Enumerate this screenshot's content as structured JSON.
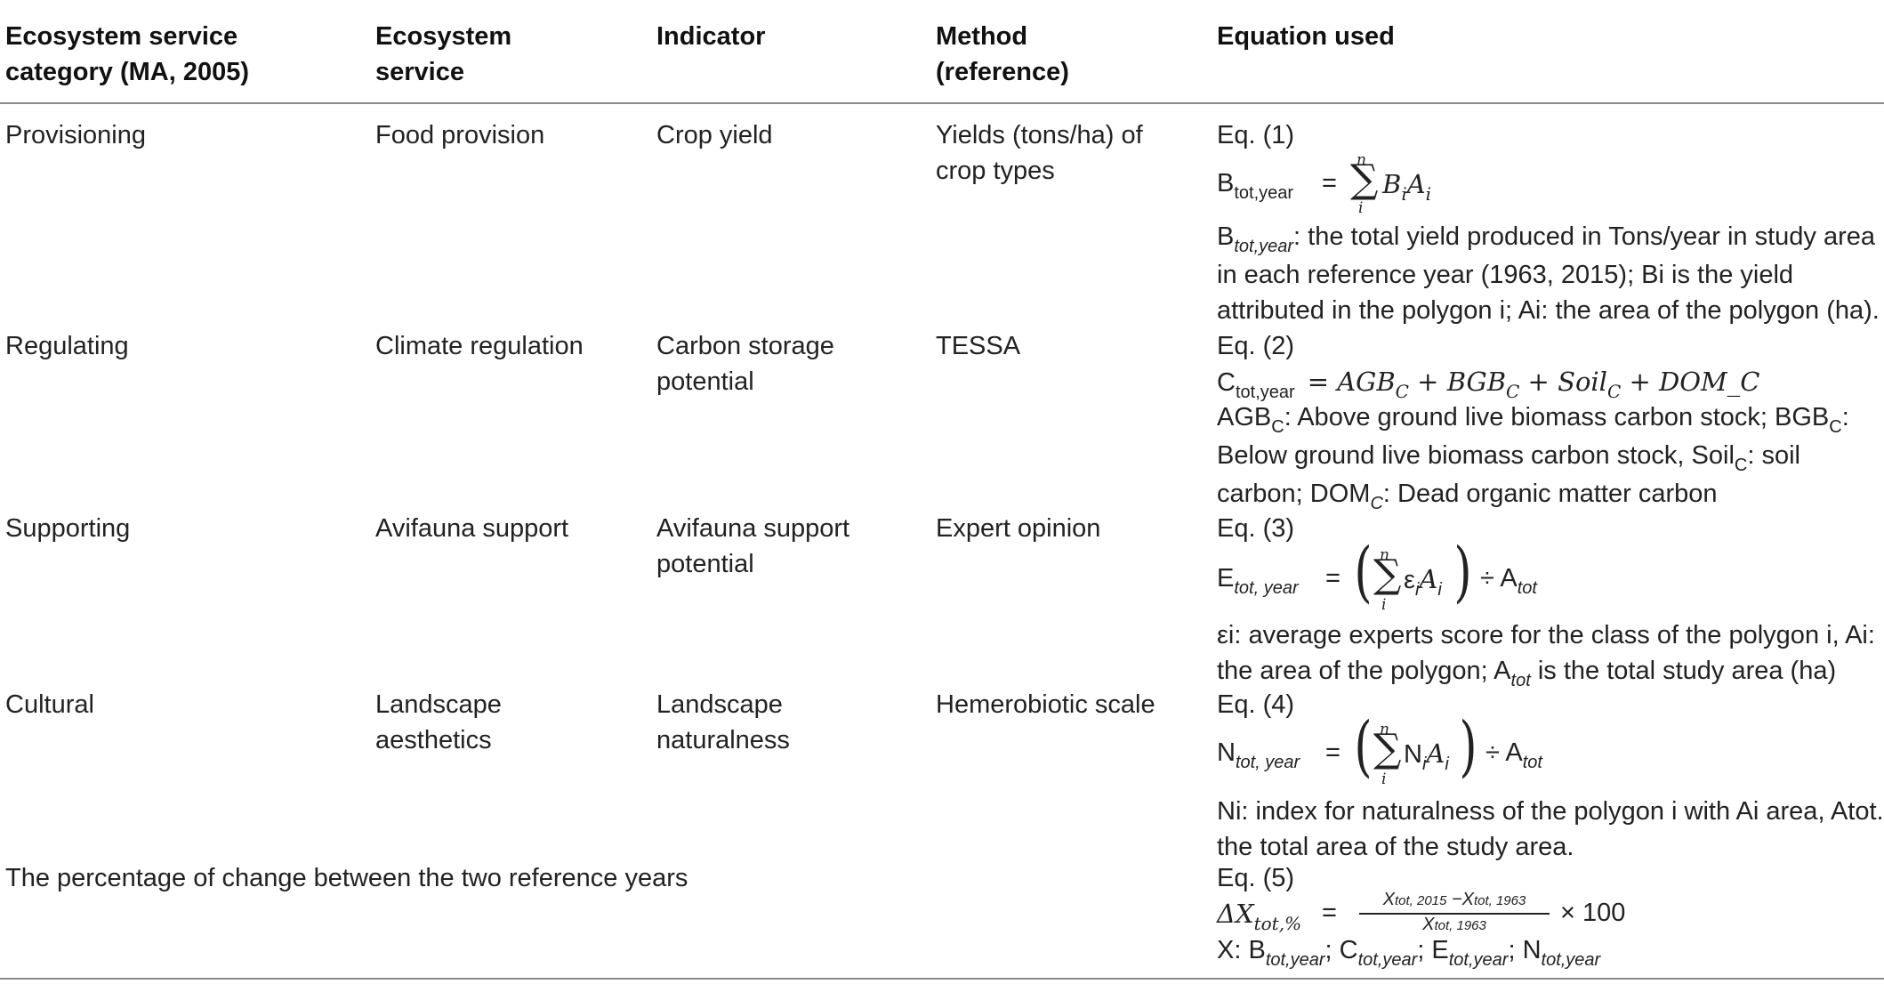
{
  "header": {
    "col1": [
      "Ecosystem service",
      "category (MA, 2005)"
    ],
    "col2": [
      "Ecosystem",
      "service"
    ],
    "col3": [
      "Indicator"
    ],
    "col4": [
      "Method",
      "(reference)"
    ],
    "col5": [
      "Equation used"
    ]
  },
  "rows": [
    {
      "category": "Provisioning",
      "service": "Food provision",
      "indicator": "Crop yield",
      "method": [
        "Yields (tons/ha) of",
        "crop types"
      ],
      "eq_label": "Eq. (1)",
      "formula": {
        "lhs_main": "B",
        "lhs_sub": "tot,year",
        "eq_sign": "=",
        "sum_top": "n",
        "sum_bottom": "i",
        "term": "B",
        "term_sub": "i",
        "term2": "A",
        "term2_sub": "i"
      },
      "desc": [
        {
          "a": "B",
          "b": "tot,year",
          "c": ": the total yield produced in Tons/year in study area"
        },
        {
          "a": "in each reference year (1963, 2015); Bi is the yield"
        },
        {
          "a": "attributed in the polygon i; Ai: the area of the polygon (ha)."
        }
      ]
    },
    {
      "category": "Regulating",
      "service": "Climate regulation",
      "indicator": [
        "Carbon storage",
        "potential"
      ],
      "method": [
        "TESSA"
      ],
      "eq_label": "Eq. (2)",
      "formula": {
        "lhs_main": "C",
        "lhs_sub": "tot,year",
        "rhs": "= AGB",
        "s1": "C",
        "p1": " + BGB",
        "s2": "C",
        "p2": " + Soil",
        "s3": "C",
        "p3": " + DOM_C"
      },
      "desc": [
        {
          "a": "AGB",
          "b": "C",
          "c": ": Above ground live biomass carbon stock; BGB",
          "d": "C",
          "e": ":"
        },
        {
          "a": "Below ground live biomass carbon stock, Soil",
          "b": "C",
          "c": ": soil"
        },
        {
          "a": "carbon; DOM",
          "b": "C",
          "c": ": Dead organic matter carbon"
        }
      ]
    },
    {
      "category": "Supporting",
      "service": "Avifauna support",
      "indicator": [
        "Avifauna support",
        "potential"
      ],
      "method": [
        "Expert opinion"
      ],
      "eq_label": "Eq. (3)",
      "formula": {
        "lhs_main": "E",
        "lhs_sub": "tot, year",
        "eq_sign": "=",
        "sum_top": "n",
        "sum_bottom": "i",
        "term": "ε",
        "term_sub": "i",
        "term2": "A",
        "term2_sub": "i",
        "tail": "÷ A",
        "tail_sub": "tot"
      },
      "desc": [
        {
          "a": "εi: average experts score for the class of the polygon i, Ai:"
        },
        {
          "a": "the area of the polygon; A",
          "b": "tot",
          "c": " is the total study area (ha)"
        }
      ]
    },
    {
      "category": "Cultural",
      "service": [
        "Landscape",
        "aesthetics"
      ],
      "indicator": [
        "Landscape",
        "naturalness"
      ],
      "method": [
        "Hemerobiotic scale"
      ],
      "eq_label": "Eq. (4)",
      "formula": {
        "lhs_main": "N",
        "lhs_sub": "tot, year",
        "eq_sign": "=",
        "sum_top": "n",
        "sum_bottom": "i",
        "term": "N",
        "term_sub": "i",
        "term2": "A",
        "term2_sub": "i",
        "tail": "÷ A",
        "tail_sub": "tot"
      },
      "desc": [
        {
          "a": "Ni: index for naturalness of the polygon i with Ai area, Atot.:"
        },
        {
          "a": "the total area of the study area."
        }
      ]
    }
  ],
  "footer_row": {
    "text": "The percentage of change between the two reference years",
    "eq_label": "Eq. (5)",
    "formula": {
      "lhs": "ΔX",
      "lhs_sub": "tot,%",
      "eq_sign": "=",
      "num": "X",
      "num_sub1": "tot, 2015",
      "num_mid": " −X",
      "num_sub2": "tot, 1963",
      "den": "X",
      "den_sub": "tot, 1963",
      "mult": "× 100"
    },
    "desc": {
      "a": "X: B",
      "b": "tot,year",
      "c": "; C",
      "d": "tot,year",
      "e": "; E",
      "f": "tot,year",
      "g": "; N",
      "h": "tot,year"
    }
  }
}
